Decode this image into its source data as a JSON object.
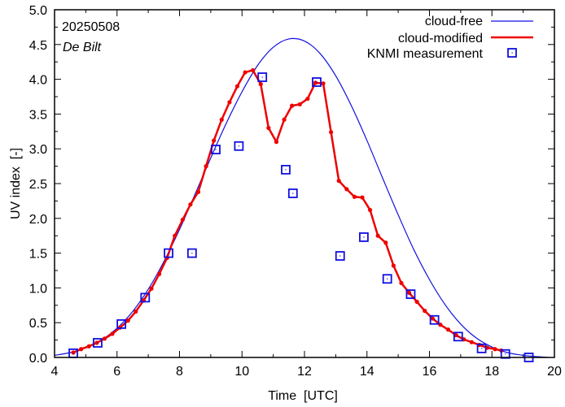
{
  "chart_data": {
    "type": "line",
    "title": "",
    "annotation_date": "20250508",
    "annotation_site": "De Bilt",
    "xlabel": "Time  [UTC]",
    "ylabel": "UV index  [-]",
    "xlim": [
      4,
      20
    ],
    "ylim": [
      0,
      5
    ],
    "xticks": [
      "4",
      "6",
      "8",
      "10",
      "12",
      "14",
      "16",
      "18",
      "20"
    ],
    "yticks": [
      "0.0",
      "0.5",
      "1.0",
      "1.5",
      "2.0",
      "2.5",
      "3.0",
      "3.5",
      "4.0",
      "4.5",
      "5.0"
    ],
    "legend_position": "top-right",
    "colors": {
      "cloud_free": "#1010e0",
      "cloud_modified": "#ee0000",
      "measurement": "#1010e0"
    },
    "series": [
      {
        "name": "cloud-free",
        "type": "line",
        "x": [
          4.0,
          4.5,
          5.0,
          5.5,
          6.0,
          6.5,
          7.0,
          7.5,
          8.0,
          8.5,
          9.0,
          9.5,
          10.0,
          10.5,
          11.0,
          11.5,
          12.0,
          12.5,
          13.0,
          13.5,
          14.0,
          14.5,
          15.0,
          15.5,
          16.0,
          16.5,
          17.0,
          17.5,
          18.0,
          18.5,
          19.0,
          19.5,
          19.8
        ],
        "y": [
          0.03,
          0.07,
          0.14,
          0.25,
          0.42,
          0.66,
          0.98,
          1.38,
          1.84,
          2.35,
          2.87,
          3.37,
          3.82,
          4.2,
          4.46,
          4.58,
          4.55,
          4.37,
          4.05,
          3.62,
          3.12,
          2.58,
          2.05,
          1.55,
          1.12,
          0.76,
          0.48,
          0.28,
          0.15,
          0.07,
          0.03,
          0.01,
          0.0
        ]
      },
      {
        "name": "cloud-modified",
        "type": "line-points",
        "x": [
          4.6,
          4.85,
          5.1,
          5.35,
          5.6,
          5.85,
          6.1,
          6.35,
          6.6,
          6.85,
          7.1,
          7.35,
          7.6,
          7.85,
          8.1,
          8.35,
          8.6,
          8.85,
          9.1,
          9.35,
          9.6,
          9.85,
          10.1,
          10.35,
          10.6,
          10.85,
          11.1,
          11.35,
          11.6,
          11.85,
          12.1,
          12.35,
          12.6,
          12.85,
          13.1,
          13.35,
          13.6,
          13.85,
          14.1,
          14.35,
          14.6,
          14.85,
          15.1,
          15.35,
          15.6,
          15.85,
          16.1,
          16.35,
          16.6,
          16.85,
          17.1,
          17.35,
          17.6,
          17.85,
          18.1,
          18.3
        ],
        "y": [
          0.07,
          0.12,
          0.16,
          0.21,
          0.27,
          0.34,
          0.43,
          0.53,
          0.66,
          0.82,
          0.99,
          1.2,
          1.43,
          1.75,
          1.98,
          2.2,
          2.38,
          2.75,
          3.12,
          3.42,
          3.67,
          3.9,
          4.1,
          4.13,
          3.93,
          3.3,
          3.1,
          3.42,
          3.62,
          3.64,
          3.72,
          3.95,
          3.94,
          3.24,
          2.54,
          2.42,
          2.31,
          2.3,
          2.12,
          1.75,
          1.65,
          1.32,
          1.07,
          0.93,
          0.8,
          0.67,
          0.56,
          0.47,
          0.4,
          0.32,
          0.26,
          0.22,
          0.18,
          0.14,
          0.12,
          0.1
        ]
      },
      {
        "name": "KNMI measurement",
        "type": "points",
        "x": [
          4.6,
          5.38,
          6.14,
          6.9,
          7.65,
          8.4,
          9.16,
          9.9,
          10.65,
          11.4,
          11.63,
          12.39,
          13.14,
          13.9,
          14.65,
          15.4,
          16.16,
          16.92,
          17.67,
          18.43,
          19.18
        ],
        "y": [
          0.06,
          0.21,
          0.48,
          0.86,
          1.5,
          1.5,
          2.99,
          3.04,
          4.03,
          2.7,
          2.36,
          3.96,
          1.46,
          1.73,
          1.13,
          0.91,
          0.54,
          0.3,
          0.13,
          0.05,
          0.0
        ]
      }
    ]
  }
}
